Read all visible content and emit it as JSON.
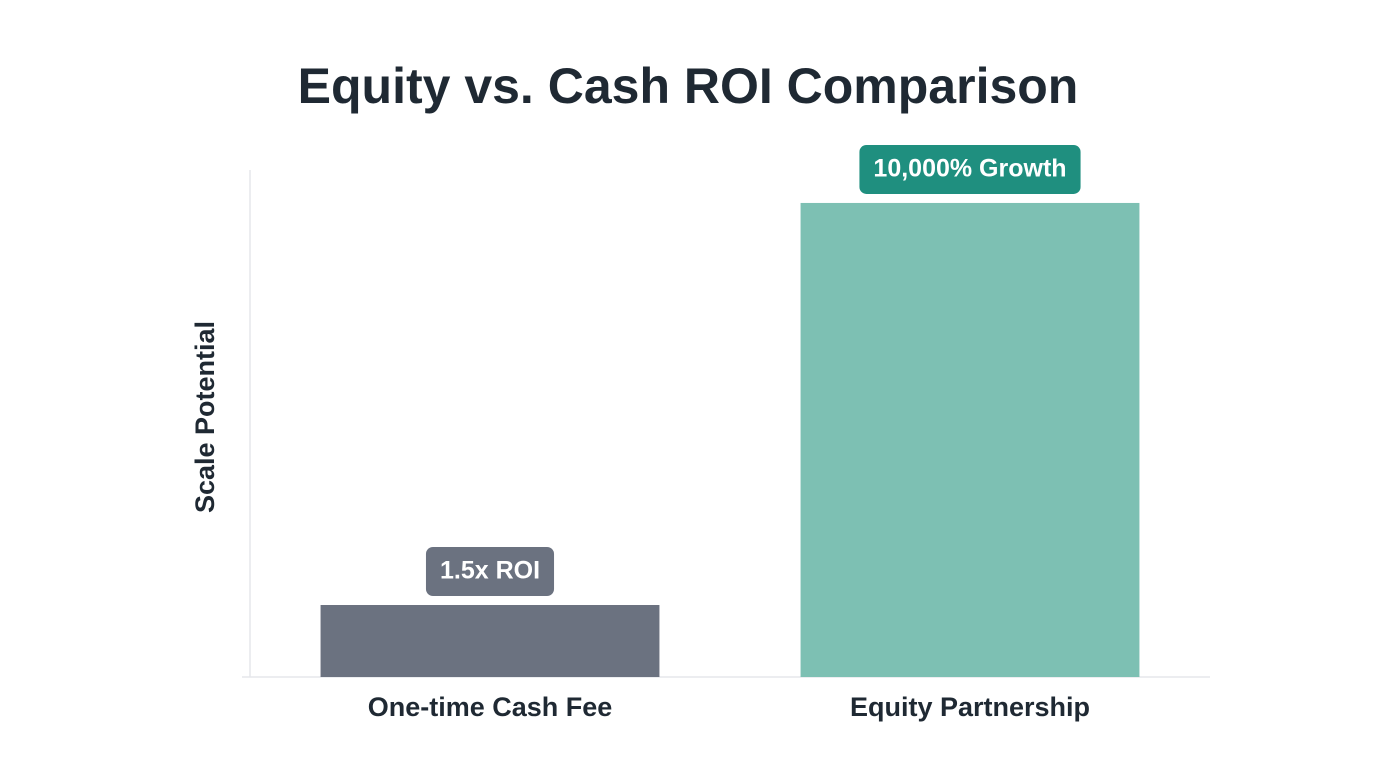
{
  "chart_data": {
    "type": "bar",
    "title": "Equity vs. Cash ROI Comparison",
    "y_label": "Scale Potential",
    "categories": [
      "One-time Cash Fee",
      "Equity Partnership"
    ],
    "values": [
      14.2,
      93.5
    ],
    "colors": [
      "#6b7280",
      "#7dc0b3"
    ],
    "annotations": [
      "1.5x ROI",
      "10,000% Growth"
    ],
    "annotation_colors": [
      "#6b7280",
      "#1f8f7f"
    ],
    "ylim": [
      0,
      100
    ]
  }
}
